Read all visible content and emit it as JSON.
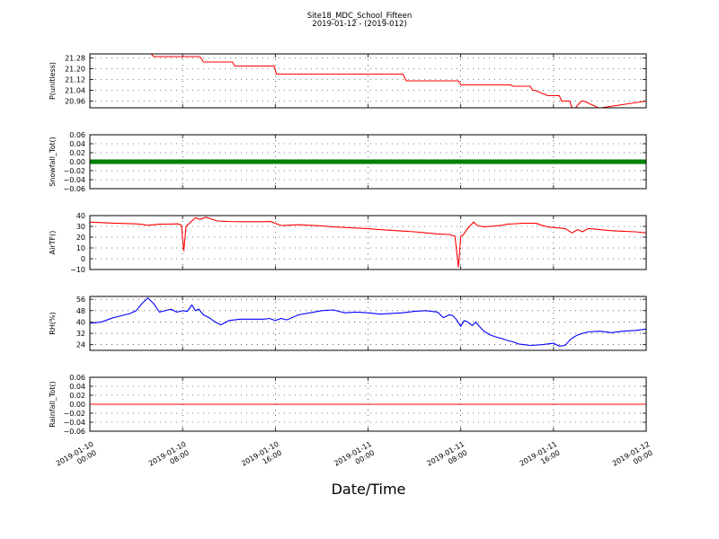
{
  "figure": {
    "title_line1": "Site18_MDC_School_Fifteen",
    "title_line2": "2019-01-12 - (2019-012)",
    "xlabel": "Date/Time"
  },
  "x_ticks": [
    {
      "t": 0,
      "line1": "2019-01-10",
      "line2": "00:00"
    },
    {
      "t": 8,
      "line1": "2019-01-10",
      "line2": "08:00"
    },
    {
      "t": 16,
      "line1": "2019-01-10",
      "line2": "16:00"
    },
    {
      "t": 24,
      "line1": "2019-01-11",
      "line2": "00:00"
    },
    {
      "t": 32,
      "line1": "2019-01-11",
      "line2": "08:00"
    },
    {
      "t": 40,
      "line1": "2019-01-11",
      "line2": "16:00"
    },
    {
      "t": 48,
      "line1": "2019-01-12",
      "line2": "00:00"
    }
  ],
  "chart_data": [
    {
      "type": "line",
      "ylabel": "P(unitless)",
      "ylim": [
        20.91,
        21.31
      ],
      "yticks": [
        "21.28",
        "21.20",
        "21.12",
        "21.04",
        "20.96"
      ],
      "grid": true,
      "color": "#ff0000",
      "series": [
        {
          "x": [
            5.3,
            5.5,
            6.0,
            9.5,
            9.8,
            12.3,
            12.5,
            15.9,
            16.1,
            27.0,
            27.3,
            31.8,
            32.0,
            36.0,
            36.3,
            36.5,
            38.0,
            38.2,
            38.4,
            39.5,
            39.7,
            40.5,
            40.7,
            41.0,
            41.4,
            41.6,
            41.9,
            42.4,
            42.6,
            43.9,
            44.1,
            48.0
          ],
          "y": [
            21.31,
            21.29,
            21.29,
            21.29,
            21.25,
            21.25,
            21.22,
            21.22,
            21.16,
            21.16,
            21.11,
            21.11,
            21.08,
            21.08,
            21.08,
            21.07,
            21.07,
            21.04,
            21.04,
            21.0,
            21.0,
            21.0,
            20.96,
            20.96,
            20.96,
            20.91,
            20.91,
            20.96,
            20.96,
            20.91,
            20.91,
            20.96
          ]
        }
      ]
    },
    {
      "type": "line",
      "ylabel": "Snowfall_Tot()",
      "ylim": [
        -0.06,
        0.06
      ],
      "yticks": [
        "0.06",
        "0.04",
        "0.02",
        "0.00",
        "−0.02",
        "−0.04",
        "−0.06"
      ],
      "grid": true,
      "color": "#008000",
      "markers": true,
      "series": [
        {
          "x": [
            0,
            48
          ],
          "y": [
            0.0,
            0.0
          ]
        }
      ]
    },
    {
      "type": "line",
      "ylabel": "AirTF()",
      "ylim": [
        -10,
        40
      ],
      "yticks": [
        "40",
        "30",
        "20",
        "10",
        "0",
        "−10"
      ],
      "grid": true,
      "color": "#ff0000",
      "series": [
        {
          "x": [
            0,
            1,
            2,
            3,
            4,
            4.5,
            5,
            6,
            7,
            7.6,
            7.9,
            8.1,
            8.3,
            8.7,
            9.1,
            9.5,
            10,
            11,
            12,
            13,
            14,
            15,
            15.6,
            16,
            16.5,
            17,
            18,
            19,
            20,
            21,
            22,
            23,
            24,
            25,
            26,
            27,
            28,
            29,
            30,
            31,
            31.5,
            31.8,
            32.0,
            32.2,
            32.6,
            33.1,
            33.4,
            34,
            35,
            35.6,
            36,
            36.8,
            37.3,
            38,
            38.5,
            39,
            39.5,
            40,
            40.5,
            41,
            41.3,
            41.6,
            42.1,
            42.5,
            43,
            44,
            45,
            46,
            47,
            48
          ],
          "y": [
            34,
            33.5,
            33,
            32.7,
            32.3,
            31.8,
            31,
            32,
            32.2,
            32.3,
            31,
            7,
            30,
            34,
            38,
            36.5,
            38.5,
            35,
            34.5,
            34.3,
            34.3,
            34.3,
            34.5,
            32.8,
            30.8,
            31,
            31.5,
            31,
            30.5,
            29.5,
            29,
            28.5,
            27.8,
            27,
            26.3,
            25.7,
            25,
            24,
            23,
            22.5,
            21,
            -8,
            21,
            22,
            28,
            34,
            31,
            29.5,
            30.5,
            31,
            32,
            32.5,
            32.8,
            32.8,
            32.8,
            31,
            29.5,
            29,
            28.5,
            28,
            26,
            24,
            27,
            25,
            28,
            27,
            26,
            25.5,
            25,
            24
          ]
        }
      ]
    },
    {
      "type": "line",
      "ylabel": "RH(%)",
      "ylim": [
        20,
        58
      ],
      "yticks": [
        "56",
        "48",
        "40",
        "32",
        "24"
      ],
      "grid": true,
      "color": "#0000ff",
      "series": [
        {
          "x": [
            0,
            1,
            2,
            3,
            3.5,
            4,
            4.5,
            5,
            5.5,
            6,
            7,
            7.5,
            8,
            8.4,
            8.8,
            9.1,
            9.4,
            9.8,
            10.3,
            10.8,
            11.3,
            12,
            13,
            14,
            15,
            15.5,
            16,
            16.5,
            17,
            18,
            19,
            20,
            21,
            22,
            23,
            24,
            25,
            26,
            27,
            28,
            29,
            30,
            30.5,
            31,
            31.3,
            31.6,
            32,
            32.3,
            32.6,
            33,
            33.3,
            33.6,
            34,
            34.5,
            35,
            35.5,
            36,
            36.5,
            37,
            37.5,
            38,
            39,
            40,
            40.5,
            41,
            41.5,
            42,
            42.5,
            43,
            44,
            45,
            46,
            47,
            48
          ],
          "y": [
            39,
            40,
            43,
            45,
            46,
            48,
            53,
            57,
            53,
            47,
            49,
            47,
            48,
            47.5,
            52,
            48,
            49,
            45,
            43,
            40,
            38,
            41,
            42,
            42,
            42,
            42.5,
            41,
            42.5,
            41.5,
            45,
            46.5,
            48,
            48.5,
            46.5,
            47,
            46.5,
            45.5,
            46,
            46.5,
            47.5,
            48,
            47,
            43,
            45,
            44.5,
            42,
            37,
            41,
            40,
            37.5,
            40,
            37,
            33.5,
            31,
            29.5,
            28.5,
            27,
            26,
            24.5,
            24,
            23.5,
            24,
            25,
            23,
            23.5,
            28,
            30.5,
            32,
            33,
            33.5,
            32.5,
            33.5,
            34,
            35
          ]
        }
      ]
    },
    {
      "type": "line",
      "ylabel": "Rainfall_Tot()",
      "ylim": [
        -0.06,
        0.06
      ],
      "yticks": [
        "0.06",
        "0.04",
        "0.02",
        "0.00",
        "−0.02",
        "−0.04",
        "−0.06"
      ],
      "grid": true,
      "color": "#ff0000",
      "series": [
        {
          "x": [
            0,
            48
          ],
          "y": [
            0.0,
            0.0
          ]
        }
      ]
    }
  ]
}
